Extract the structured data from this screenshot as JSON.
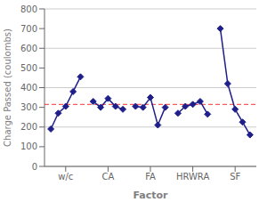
{
  "chart_data": {
    "type": "line",
    "xlabel": "Factor",
    "ylabel": "Charge Passed (coulombs)",
    "categories": [
      "w/c",
      "CA",
      "FA",
      "HRWRA",
      "SF"
    ],
    "series": [
      {
        "values": [
          190,
          270,
          305,
          380,
          455
        ]
      },
      {
        "values": [
          330,
          300,
          345,
          305,
          290
        ]
      },
      {
        "values": [
          305,
          300,
          350,
          210,
          300
        ]
      },
      {
        "values": [
          270,
          305,
          315,
          330,
          265
        ]
      },
      {
        "values": [
          700,
          420,
          290,
          225,
          160
        ]
      }
    ],
    "color": "#1F1F8B",
    "marker": "diamond",
    "reference_line": {
      "value": 315,
      "color": "#FF3333",
      "line_style": "dashed"
    },
    "ylim": [
      0,
      800
    ],
    "yticks": [
      0,
      100,
      200,
      300,
      400,
      500,
      600,
      700,
      800
    ],
    "grid": true
  }
}
